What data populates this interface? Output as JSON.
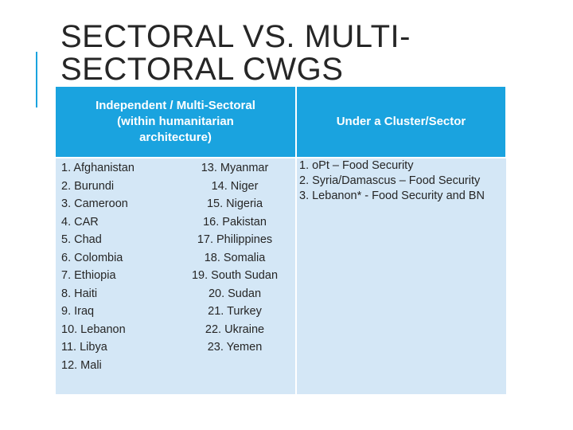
{
  "slide": {
    "title": "SECTORAL VS. MULTI-SECTORAL CWGS",
    "accent_color": "#1aa3df"
  },
  "table": {
    "header_multisectoral": "Independent / Multi-Sectoral (within  humanitarian architecture)",
    "header_cluster": "Under a Cluster/Sector",
    "multisectoral_left": [
      "1. Afghanistan",
      "2. Burundi",
      "3. Cameroon",
      "4. CAR",
      "5. Chad",
      "6. Colombia",
      "7. Ethiopia",
      "8. Haiti",
      "9. Iraq",
      "10. Lebanon",
      "11. Libya",
      "12. Mali"
    ],
    "multisectoral_right": [
      "13. Myanmar",
      "14. Niger",
      "15. Nigeria",
      "16. Pakistan",
      "17. Philippines",
      "18. Somalia",
      "19. South Sudan",
      "20. Sudan",
      "21. Turkey",
      "22. Ukraine",
      "23. Yemen"
    ],
    "cluster_items": [
      "1. oPt – Food Security",
      "2. Syria/Damascus – Food Security",
      "3. Lebanon* - Food Security and BN"
    ],
    "header_color": "#1aa3df",
    "body_color": "#d4e7f6"
  }
}
